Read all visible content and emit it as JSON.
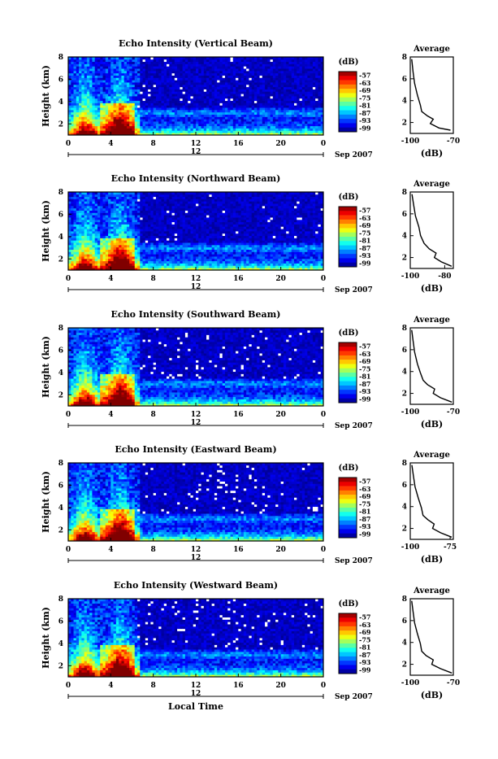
{
  "chart_data": [
    {
      "type": "heatmap",
      "title": "Echo Intensity (Vertical Beam)",
      "ylabel": "Height (km)",
      "x_ticks": [
        "0",
        "4",
        "8",
        "12",
        "16",
        "20",
        "0"
      ],
      "y_ticks": [
        "2",
        "4",
        "6",
        "8"
      ],
      "date_tick": "12",
      "date_label": "Sep 2007",
      "xlim": [
        0,
        24
      ],
      "ylim": [
        1,
        8
      ],
      "colorbar": {
        "unit": "(dB)",
        "ticks": [
          "-57",
          "-63",
          "-69",
          "-75",
          "-81",
          "-87",
          "-93",
          "-99"
        ],
        "range": [
          -100,
          -55
        ]
      },
      "average": {
        "title": "Average",
        "xlabel": "(dB)",
        "x_ticks": [
          "-100",
          "-70"
        ],
        "y_ticks": [
          "2",
          "4",
          "6",
          "8"
        ],
        "xlim": [
          -100,
          -70
        ],
        "profile": [
          [
            -72,
            1.3
          ],
          [
            -80,
            1.5
          ],
          [
            -86,
            1.9
          ],
          [
            -84,
            2.3
          ],
          [
            -88,
            2.6
          ],
          [
            -92,
            3.0
          ],
          [
            -93,
            3.6
          ],
          [
            -95,
            4.5
          ],
          [
            -97,
            5.6
          ],
          [
            -98,
            6.6
          ],
          [
            -99,
            7.8
          ]
        ]
      }
    },
    {
      "type": "heatmap",
      "title": "Echo Intensity (Northward Beam)",
      "ylabel": "Height (km)",
      "x_ticks": [
        "0",
        "4",
        "8",
        "12",
        "16",
        "20",
        "0"
      ],
      "y_ticks": [
        "2",
        "4",
        "6",
        "8"
      ],
      "date_tick": "12",
      "date_label": "Sep 2007",
      "xlim": [
        0,
        24
      ],
      "ylim": [
        1,
        8
      ],
      "colorbar": {
        "unit": "(dB)",
        "ticks": [
          "-57",
          "-63",
          "-69",
          "-75",
          "-81",
          "-87",
          "-93",
          "-99"
        ],
        "range": [
          -100,
          -55
        ]
      },
      "average": {
        "title": "Average",
        "xlabel": "(dB)",
        "x_ticks": [
          "-100",
          "-80"
        ],
        "y_ticks": [
          "2",
          "4",
          "6",
          "8"
        ],
        "xlim": [
          -100,
          -75
        ],
        "profile": [
          [
            -76,
            1.2
          ],
          [
            -82,
            1.6
          ],
          [
            -86,
            2.0
          ],
          [
            -85,
            2.4
          ],
          [
            -89,
            2.8
          ],
          [
            -92,
            3.3
          ],
          [
            -94,
            4.0
          ],
          [
            -95,
            4.8
          ],
          [
            -97,
            5.8
          ],
          [
            -98,
            6.8
          ],
          [
            -99,
            7.8
          ]
        ]
      }
    },
    {
      "type": "heatmap",
      "title": "Echo Intensity (Southward Beam)",
      "ylabel": "Height (km)",
      "x_ticks": [
        "0",
        "4",
        "8",
        "12",
        "16",
        "20",
        "0"
      ],
      "y_ticks": [
        "2",
        "4",
        "6",
        "8"
      ],
      "date_tick": "12",
      "date_label": "Sep 2007",
      "xlim": [
        0,
        24
      ],
      "ylim": [
        1,
        8
      ],
      "colorbar": {
        "unit": "(dB)",
        "ticks": [
          "-57",
          "-63",
          "-69",
          "-75",
          "-81",
          "-87",
          "-93",
          "-99"
        ],
        "range": [
          -100,
          -55
        ]
      },
      "average": {
        "title": "Average",
        "xlabel": "(dB)",
        "x_ticks": [
          "-100",
          "-70"
        ],
        "y_ticks": [
          "2",
          "4",
          "6",
          "8"
        ],
        "xlim": [
          -100,
          -70
        ],
        "profile": [
          [
            -71,
            1.2
          ],
          [
            -79,
            1.6
          ],
          [
            -84,
            2.0
          ],
          [
            -83,
            2.4
          ],
          [
            -88,
            2.8
          ],
          [
            -91,
            3.2
          ],
          [
            -93,
            3.9
          ],
          [
            -95,
            4.7
          ],
          [
            -97,
            5.8
          ],
          [
            -98,
            6.8
          ],
          [
            -99,
            7.8
          ]
        ]
      }
    },
    {
      "type": "heatmap",
      "title": "Echo Intensity (Eastward Beam)",
      "ylabel": "Height (km)",
      "x_ticks": [
        "0",
        "4",
        "8",
        "12",
        "16",
        "20",
        "0"
      ],
      "y_ticks": [
        "2",
        "4",
        "6",
        "8"
      ],
      "date_tick": "12",
      "date_label": "Sep 2007",
      "xlim": [
        0,
        24
      ],
      "ylim": [
        1,
        8
      ],
      "colorbar": {
        "unit": "(dB)",
        "ticks": [
          "-57",
          "-63",
          "-69",
          "-75",
          "-81",
          "-87",
          "-93",
          "-99"
        ],
        "range": [
          -100,
          -55
        ]
      },
      "average": {
        "title": "Average",
        "xlabel": "(dB)",
        "x_ticks": [
          "-100",
          "-75"
        ],
        "y_ticks": [
          "2",
          "4",
          "6",
          "8"
        ],
        "xlim": [
          -100,
          -73
        ],
        "profile": [
          [
            -74,
            1.2
          ],
          [
            -81,
            1.6
          ],
          [
            -86,
            2.0
          ],
          [
            -85,
            2.4
          ],
          [
            -89,
            2.8
          ],
          [
            -92,
            3.2
          ],
          [
            -93,
            3.9
          ],
          [
            -95,
            4.8
          ],
          [
            -97,
            5.8
          ],
          [
            -98,
            6.8
          ],
          [
            -99,
            7.8
          ]
        ]
      }
    },
    {
      "type": "heatmap",
      "title": "Echo Intensity (Westward Beam)",
      "ylabel": "Height (km)",
      "xlabel": "Local Time",
      "x_ticks": [
        "0",
        "4",
        "8",
        "12",
        "16",
        "20",
        "0"
      ],
      "y_ticks": [
        "2",
        "4",
        "6",
        "8"
      ],
      "date_tick": "12",
      "date_label": "Sep 2007",
      "xlim": [
        0,
        24
      ],
      "ylim": [
        1,
        8
      ],
      "colorbar": {
        "unit": "(dB)",
        "ticks": [
          "-57",
          "-63",
          "-69",
          "-75",
          "-81",
          "-87",
          "-93",
          "-99"
        ],
        "range": [
          -100,
          -55
        ]
      },
      "average": {
        "title": "Average",
        "xlabel": "(dB)",
        "x_ticks": [
          "-100",
          "-70"
        ],
        "y_ticks": [
          "2",
          "4",
          "6",
          "8"
        ],
        "xlim": [
          -100,
          -70
        ],
        "profile": [
          [
            -71,
            1.2
          ],
          [
            -79,
            1.6
          ],
          [
            -85,
            2.0
          ],
          [
            -84,
            2.4
          ],
          [
            -89,
            2.8
          ],
          [
            -92,
            3.2
          ],
          [
            -93,
            3.9
          ],
          [
            -95,
            4.8
          ],
          [
            -97,
            5.8
          ],
          [
            -98,
            6.8
          ],
          [
            -99,
            7.8
          ]
        ]
      }
    }
  ]
}
